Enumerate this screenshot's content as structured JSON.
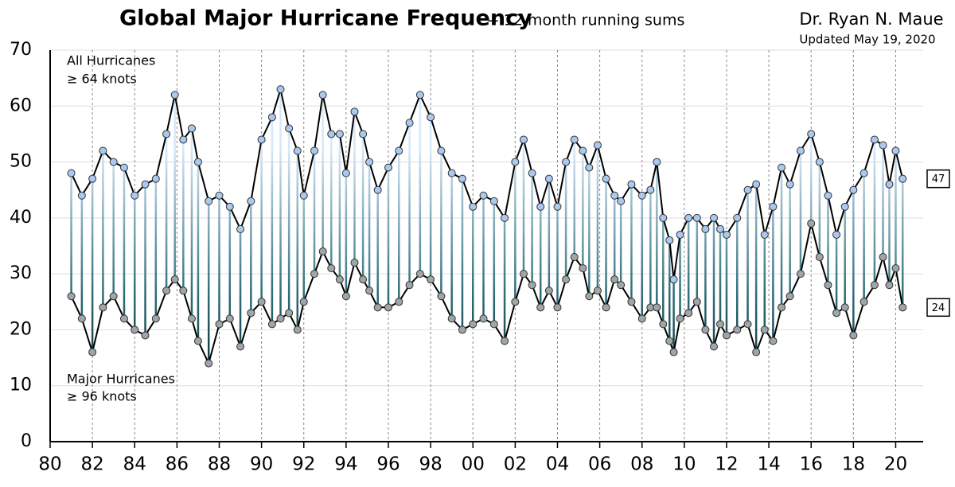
{
  "chart_data": {
    "type": "line",
    "title": "Global Major Hurricane Frequency",
    "subtitle": "-- 12 month running sums",
    "author": "Dr. Ryan N. Maue",
    "updated": "Updated May 19, 2020",
    "annotations": [
      "All Hurricanes",
      "≥ 64 knots",
      "Major Hurricanes",
      "≥ 96 knots"
    ],
    "x": [
      1981.0,
      1981.5,
      1982.0,
      1982.5,
      1983.0,
      1983.5,
      1984.0,
      1984.5,
      1985.0,
      1985.5,
      1985.9,
      1986.3,
      1986.7,
      1987.0,
      1987.5,
      1988.0,
      1988.5,
      1989.0,
      1989.5,
      1990.0,
      1990.5,
      1990.9,
      1991.3,
      1991.7,
      1992.0,
      1992.5,
      1992.9,
      1993.3,
      1993.7,
      1994.0,
      1994.4,
      1994.8,
      1995.1,
      1995.5,
      1996.0,
      1996.5,
      1997.0,
      1997.5,
      1998.0,
      1998.5,
      1999.0,
      1999.5,
      2000.0,
      2000.5,
      2001.0,
      2001.5,
      2002.0,
      2002.4,
      2002.8,
      2003.2,
      2003.6,
      2004.0,
      2004.4,
      2004.8,
      2005.2,
      2005.5,
      2005.9,
      2006.3,
      2006.7,
      2007.0,
      2007.5,
      2008.0,
      2008.4,
      2008.7,
      2009.0,
      2009.3,
      2009.5,
      2009.8,
      2010.2,
      2010.6,
      2011.0,
      2011.4,
      2011.7,
      2012.0,
      2012.5,
      2013.0,
      2013.4,
      2013.8,
      2014.2,
      2014.6,
      2015.0,
      2015.5,
      2016.0,
      2016.4,
      2016.8,
      2017.2,
      2017.6,
      2018.0,
      2018.5,
      2019.0,
      2019.4,
      2019.7,
      2020.0,
      2020.33
    ],
    "series": [
      {
        "name": "All Hurricanes",
        "color": "#a9c9f0",
        "values": [
          48,
          44,
          47,
          52,
          50,
          49,
          44,
          46,
          47,
          55,
          62,
          54,
          56,
          50,
          43,
          44,
          42,
          38,
          43,
          54,
          58,
          63,
          56,
          52,
          44,
          52,
          62,
          55,
          55,
          48,
          59,
          55,
          50,
          45,
          49,
          52,
          57,
          62,
          58,
          52,
          48,
          47,
          42,
          44,
          43,
          40,
          50,
          54,
          48,
          42,
          47,
          42,
          50,
          54,
          52,
          49,
          53,
          47,
          44,
          43,
          46,
          44,
          45,
          50,
          40,
          36,
          29,
          37,
          40,
          40,
          38,
          40,
          38,
          37,
          40,
          45,
          46,
          37,
          42,
          49,
          46,
          52,
          55,
          50,
          44,
          37,
          42,
          45,
          48,
          54,
          53,
          46,
          52,
          47
        ]
      },
      {
        "name": "Major Hurricanes",
        "color": "#9ea6a6",
        "values": [
          26,
          22,
          16,
          24,
          26,
          22,
          20,
          19,
          22,
          27,
          29,
          27,
          22,
          18,
          14,
          21,
          22,
          17,
          23,
          25,
          21,
          22,
          23,
          20,
          25,
          30,
          34,
          31,
          29,
          26,
          32,
          29,
          27,
          24,
          24,
          25,
          28,
          30,
          29,
          26,
          22,
          20,
          21,
          22,
          21,
          18,
          25,
          30,
          28,
          24,
          27,
          24,
          29,
          33,
          31,
          26,
          27,
          24,
          29,
          28,
          25,
          22,
          24,
          24,
          21,
          18,
          16,
          22,
          23,
          25,
          20,
          17,
          21,
          19,
          20,
          21,
          16,
          20,
          18,
          24,
          26,
          30,
          39,
          33,
          28,
          23,
          24,
          19,
          25,
          28,
          33,
          28,
          31,
          24
        ]
      }
    ],
    "xlim": [
      1980,
      2021.3
    ],
    "xticks": [
      {
        "value": 1980,
        "label": "80"
      },
      {
        "value": 1982,
        "label": "82"
      },
      {
        "value": 1984,
        "label": "84"
      },
      {
        "value": 1986,
        "label": "86"
      },
      {
        "value": 1988,
        "label": "88"
      },
      {
        "value": 1990,
        "label": "90"
      },
      {
        "value": 1992,
        "label": "92"
      },
      {
        "value": 1994,
        "label": "94"
      },
      {
        "value": 1996,
        "label": "96"
      },
      {
        "value": 1998,
        "label": "98"
      },
      {
        "value": 2000,
        "label": "00"
      },
      {
        "value": 2002,
        "label": "02"
      },
      {
        "value": 2004,
        "label": "04"
      },
      {
        "value": 2006,
        "label": "06"
      },
      {
        "value": 2008,
        "label": "08"
      },
      {
        "value": 2010,
        "label": "10"
      },
      {
        "value": 2012,
        "label": "12"
      },
      {
        "value": 2014,
        "label": "14"
      },
      {
        "value": 2016,
        "label": "16"
      },
      {
        "value": 2018,
        "label": "18"
      },
      {
        "value": 2020,
        "label": "20"
      }
    ],
    "ylim": [
      0,
      70
    ],
    "yticks": [
      0,
      10,
      20,
      30,
      40,
      50,
      60,
      70
    ],
    "grid": true
  }
}
